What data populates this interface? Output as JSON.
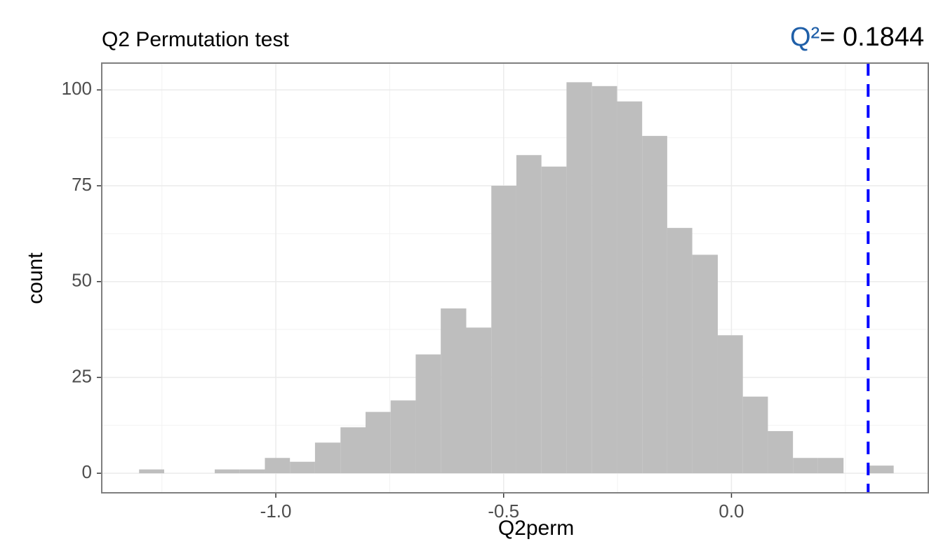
{
  "chart_data": {
    "type": "histogram",
    "title": "Q2 Permutation test",
    "x_label": "Q2perm",
    "y_label": "count",
    "bins": [
      -1.3,
      -1.245,
      -1.19,
      -1.134,
      -1.079,
      -1.024,
      -0.969,
      -0.914,
      -0.858,
      -0.803,
      -0.748,
      -0.693,
      -0.638,
      -0.582,
      -0.527,
      -0.472,
      -0.417,
      -0.362,
      -0.306,
      -0.251,
      -0.196,
      -0.141,
      -0.086,
      -0.03,
      0.025,
      0.08,
      0.135,
      0.19,
      0.246,
      0.301,
      0.356
    ],
    "values": [
      1,
      0,
      0,
      1,
      1,
      4,
      3,
      8,
      12,
      16,
      19,
      31,
      43,
      38,
      75,
      83,
      80,
      102,
      101,
      97,
      88,
      64,
      57,
      36,
      20,
      11,
      4,
      4,
      0,
      2
    ],
    "color": "#bebebe",
    "xlim": [
      -1.382,
      0.432
    ],
    "ylim": [
      -5.1,
      107
    ],
    "xticks": [
      {
        "value": -1.0,
        "label": "-1.0"
      },
      {
        "value": -0.5,
        "label": "-0.5"
      },
      {
        "value": 0.0,
        "label": "0.0"
      }
    ],
    "yticks": [
      0,
      25,
      50,
      75,
      100
    ],
    "grid": true,
    "vline": {
      "value": 0.3,
      "color": "#0000ff"
    },
    "annotation": {
      "symbol": "Q²",
      "text": "= 0.1844"
    }
  }
}
